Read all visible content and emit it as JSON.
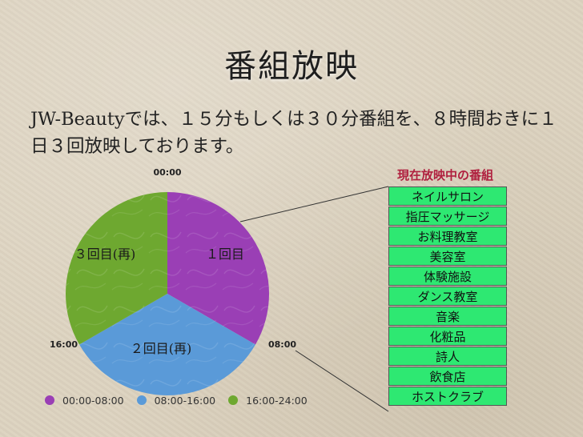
{
  "slide": {
    "title": "番組放映",
    "description": "JW-Beautyでは、１５分もしくは３０分番組を、８時間おきに１日３回放映しております。"
  },
  "chart_data": {
    "type": "pie",
    "categories": [
      "１回目",
      "２回目(再)",
      "３回目(再)"
    ],
    "values": [
      8,
      8,
      8
    ],
    "unit": "hours",
    "time_labels": [
      "00:00",
      "08:00",
      "16:00"
    ],
    "legend": [
      "00:00-08:00",
      "08:00-16:00",
      "16:00-24:00"
    ],
    "legend_placement": "bottom",
    "colors": [
      "#9a3fb5",
      "#5a9ad8",
      "#6ea830"
    ]
  },
  "program_list": {
    "header": "現在放映中の番組",
    "items": [
      "ネイルサロン",
      "指圧マッサージ",
      "お料理教室",
      "美容室",
      "体験施設",
      "ダンス教室",
      "音楽",
      "化粧品",
      "詩人",
      "飲食店",
      "ホストクラブ"
    ],
    "item_color": "#2ee872",
    "header_color": "#b0203f"
  }
}
